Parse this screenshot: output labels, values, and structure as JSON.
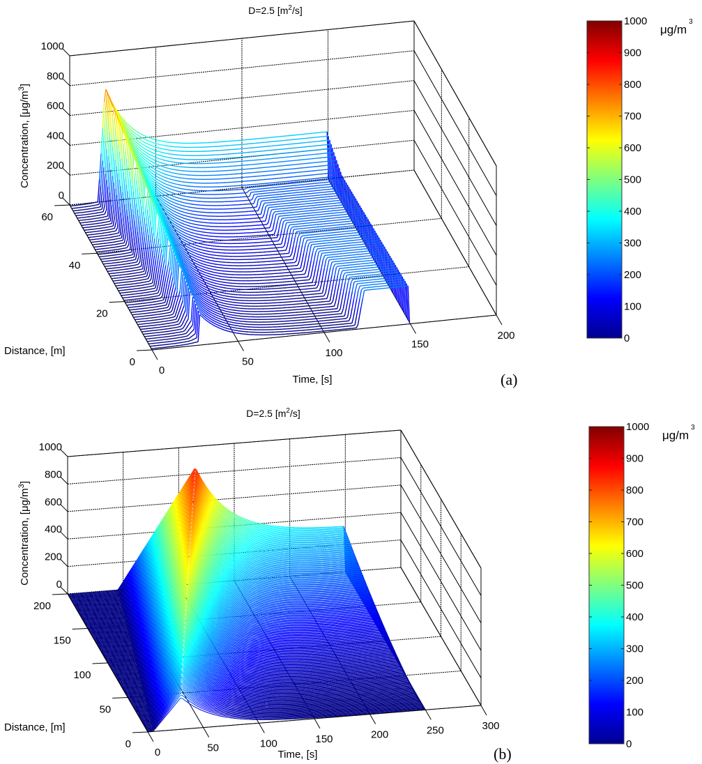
{
  "chart_data": [
    {
      "type": "waterfall3d",
      "panel_label": "(a)",
      "title_main": "D=2.5 [m",
      "title_sup": "2",
      "title_end": "/s]",
      "zlabel_main": "Concentration, [μg/m",
      "zlabel_sup": "3",
      "zlabel_end": "]",
      "xlabel": "Time, [s]",
      "ylabel": "Distance, [m]",
      "xlim": [
        0,
        200
      ],
      "ylim": [
        0,
        60
      ],
      "zlim": [
        0,
        1000
      ],
      "xticks": [
        "0",
        "50",
        "100",
        "150",
        "200"
      ],
      "xtick_values": [
        0,
        50,
        100,
        150,
        200
      ],
      "yticks": [
        "0",
        "20",
        "40",
        "60"
      ],
      "ytick_values": [
        0,
        20,
        40,
        60
      ],
      "zticks": [
        "0",
        "200",
        "400",
        "600",
        "800",
        "1000"
      ],
      "ztick_values": [
        0,
        200,
        400,
        600,
        800,
        1000
      ],
      "grid": true,
      "series_count": 60,
      "data_extent_time": [
        0,
        150
      ],
      "peak_concentration": 780,
      "peak_time": 20,
      "plateau_concentration": 330,
      "plateau_start_time": 80,
      "colormap": "jet",
      "colorbar": {
        "ticks": [
          "0",
          "100",
          "200",
          "300",
          "400",
          "500",
          "600",
          "700",
          "800",
          "900",
          "1000"
        ],
        "tick_values": [
          0,
          100,
          200,
          300,
          400,
          500,
          600,
          700,
          800,
          900,
          1000
        ],
        "unit_main": "μg/m",
        "unit_sup": "3",
        "range": [
          0,
          1000
        ]
      }
    },
    {
      "type": "waterfall3d",
      "panel_label": "(b)",
      "title_main": "D=2.5 [m",
      "title_sup": "2",
      "title_end": "/s]",
      "zlabel_main": "Concentration, [μg/m",
      "zlabel_sup": "3",
      "zlabel_end": "]",
      "xlabel": "Time, [s]",
      "ylabel": "Distance, [m]",
      "xlim": [
        0,
        300
      ],
      "ylim": [
        0,
        200
      ],
      "zlim": [
        0,
        1000
      ],
      "xticks": [
        "0",
        "50",
        "100",
        "150",
        "200",
        "250",
        "300"
      ],
      "xtick_values": [
        0,
        50,
        100,
        150,
        200,
        250,
        300
      ],
      "yticks": [
        "0",
        "50",
        "100",
        "150",
        "200"
      ],
      "ytick_values": [
        0,
        50,
        100,
        150,
        200
      ],
      "zticks": [
        "0",
        "200",
        "400",
        "600",
        "800",
        "1000"
      ],
      "ztick_values": [
        0,
        200,
        400,
        600,
        800,
        1000
      ],
      "grid": true,
      "series_count": 200,
      "data_extent_time": [
        0,
        250
      ],
      "peak_concentration": 850,
      "peak_time": 120,
      "plateau_concentration": 330,
      "plateau_start_time": 150,
      "colormap": "jet",
      "colorbar": {
        "ticks": [
          "0",
          "100",
          "200",
          "300",
          "400",
          "500",
          "600",
          "700",
          "800",
          "900",
          "1000"
        ],
        "tick_values": [
          0,
          100,
          200,
          300,
          400,
          500,
          600,
          700,
          800,
          900,
          1000
        ],
        "unit_main": "μg/m",
        "unit_sup": "3",
        "range": [
          0,
          1000
        ]
      }
    }
  ],
  "colors": {
    "axis": "#000000",
    "grid": "#000000",
    "background": "#ffffff"
  }
}
